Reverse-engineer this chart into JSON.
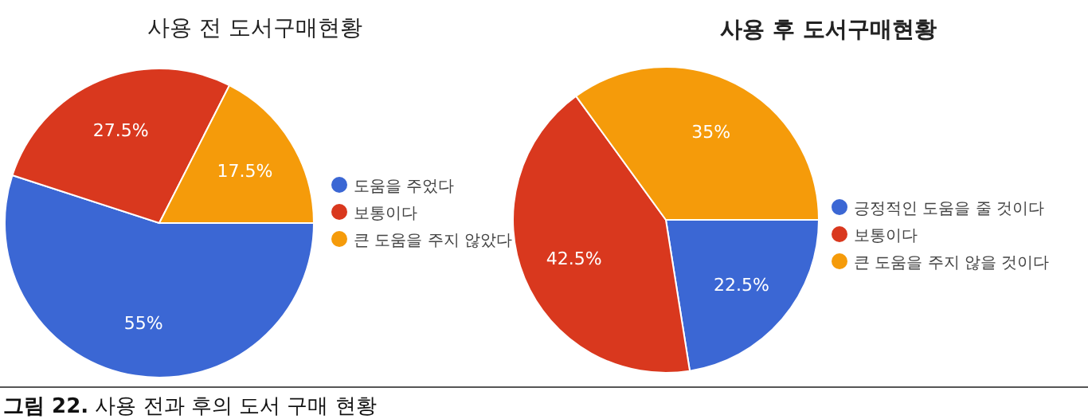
{
  "chart_data": [
    {
      "type": "pie",
      "title": "사용 전 도서구매현황",
      "categories": [
        "도움을 주었다",
        "보통이다",
        "큰 도움을 주지 않았다"
      ],
      "values": [
        55,
        27.5,
        17.5
      ],
      "value_labels": [
        "55%",
        "27.5%",
        "17.5%"
      ],
      "colors": [
        "#3b67d4",
        "#d9381e",
        "#f59b0a"
      ],
      "legend": "right",
      "annotations": [
        "**그림 22.** 사용 전과 후의 도서 구매 현황"
      ]
    },
    {
      "type": "pie",
      "title": "사용 후 도서구매현황",
      "categories": [
        "긍정적인 도움을 줄 것이다",
        "보통이다",
        "큰 도움을 주지 않을 것이다"
      ],
      "values": [
        22.5,
        42.5,
        35
      ],
      "value_labels": [
        "22.5%",
        "42.5%",
        "35%"
      ],
      "colors": [
        "#3b67d4",
        "#d9381e",
        "#f59b0a"
      ],
      "legend": "right"
    }
  ]
}
